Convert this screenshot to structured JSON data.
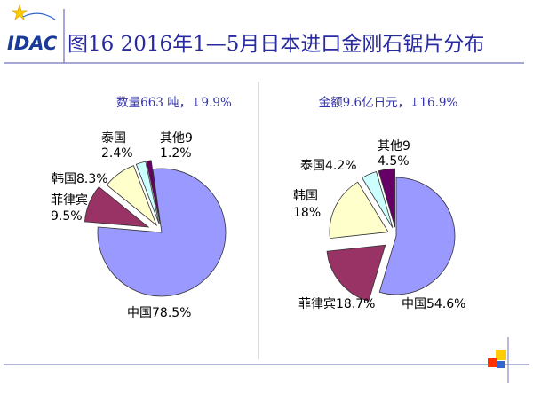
{
  "header": {
    "logo_text": "IDAC",
    "title": "图16  2016年1—5月日本进口金刚石锯片分布"
  },
  "colors": {
    "title": "#2a2aa0",
    "subtitle": "#3333aa",
    "rule": "#8a8ac8",
    "china": "#9999ff",
    "philippines": "#993366",
    "korea": "#ffffcc",
    "thailand": "#ccffff",
    "other": "#660066"
  },
  "chart_data": [
    {
      "type": "pie",
      "title": "数量663 吨，↓9.9%",
      "slices": [
        {
          "name": "中国",
          "value": 78.5,
          "label": "中国78.5%"
        },
        {
          "name": "菲律宾",
          "value": 9.5,
          "label": "菲律宾",
          "label2": "9.5%"
        },
        {
          "name": "韩国",
          "value": 8.3,
          "label": "韩国8.3%"
        },
        {
          "name": "泰国",
          "value": 2.4,
          "label": "泰国",
          "label2": "2.4%"
        },
        {
          "name": "其他",
          "value": 1.2,
          "label": "其他9",
          "label2": "1.2%"
        }
      ]
    },
    {
      "type": "pie",
      "title": "金额9.6亿日元，↓16.9%",
      "slices": [
        {
          "name": "中国",
          "value": 54.6,
          "label": "中国54.6%"
        },
        {
          "name": "菲律宾",
          "value": 18.7,
          "label": "菲律宾18.7%"
        },
        {
          "name": "韩国",
          "value": 18,
          "label": "韩国",
          "label2": "18%"
        },
        {
          "name": "泰国",
          "value": 4.2,
          "label": "泰国4.2%"
        },
        {
          "name": "其他",
          "value": 4.5,
          "label": "其他9",
          "label2": "4.5%"
        }
      ]
    }
  ]
}
